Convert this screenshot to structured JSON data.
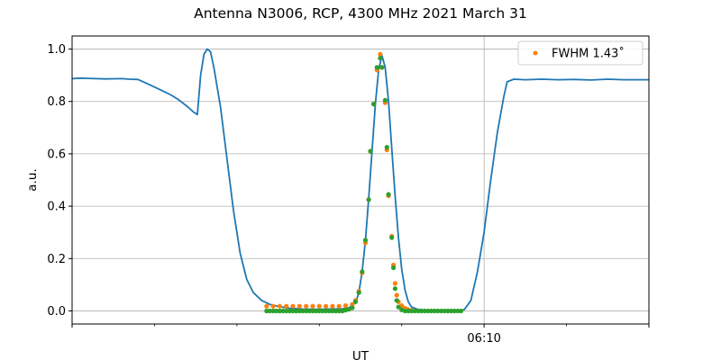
{
  "chart_data": {
    "type": "line",
    "title": "Antenna N3006, RCP, 4300 MHz 2021 March 31",
    "xlabel": "UT",
    "ylabel": "a.u.",
    "xlim": [
      "05:45:00",
      "06:20:00"
    ],
    "ylim": [
      -0.05,
      1.05
    ],
    "yticks": [
      0.0,
      0.2,
      0.4,
      0.6,
      0.8,
      1.0
    ],
    "ytick_labels": [
      "0.0",
      "0.2",
      "0.4",
      "0.6",
      "0.8",
      "1.0"
    ],
    "xtick_major": [
      {
        "time": "06:10:00",
        "label": "06:10"
      }
    ],
    "xtick_minor": [
      "05:50:00",
      "05:55:00",
      "06:00:00",
      "06:05:00",
      "06:15:00"
    ],
    "grid": true,
    "legend": {
      "position": "top-right",
      "entries": [
        {
          "label": "FWHM 1.43$^\\circ$",
          "display": "FWHM 1.43˚",
          "color": "#ff7f0e"
        }
      ]
    },
    "colors": {
      "line": "#1f77b4",
      "fit": "#ff7f0e",
      "sample": "#2ca02c",
      "grid": "#b0b0b0"
    },
    "series": [
      {
        "style": "line",
        "color": "#1f77b4",
        "points": [
          [
            "05:45:00",
            0.887
          ],
          [
            "05:45:30",
            0.889
          ],
          [
            "05:46:00",
            0.888
          ],
          [
            "05:47:00",
            0.886
          ],
          [
            "05:48:00",
            0.887
          ],
          [
            "05:48:30",
            0.885
          ],
          [
            "05:49:00",
            0.884
          ],
          [
            "05:49:30",
            0.87
          ],
          [
            "05:50:00",
            0.855
          ],
          [
            "05:50:30",
            0.84
          ],
          [
            "05:51:00",
            0.825
          ],
          [
            "05:51:30",
            0.805
          ],
          [
            "05:52:00",
            0.78
          ],
          [
            "05:52:24",
            0.758
          ],
          [
            "05:52:36",
            0.75
          ],
          [
            "05:52:48",
            0.9
          ],
          [
            "05:53:00",
            0.98
          ],
          [
            "05:53:12",
            1.0
          ],
          [
            "05:53:24",
            0.99
          ],
          [
            "05:53:36",
            0.93
          ],
          [
            "05:54:00",
            0.78
          ],
          [
            "05:54:24",
            0.58
          ],
          [
            "05:54:48",
            0.38
          ],
          [
            "05:55:12",
            0.22
          ],
          [
            "05:55:36",
            0.12
          ],
          [
            "05:56:00",
            0.07
          ],
          [
            "05:56:30",
            0.04
          ],
          [
            "05:57:00",
            0.025
          ],
          [
            "05:57:36",
            0.016
          ],
          [
            "05:58:12",
            0.01
          ],
          [
            "05:59:00",
            0.007
          ],
          [
            "05:59:48",
            0.006
          ],
          [
            "06:00:36",
            0.007
          ],
          [
            "06:01:24",
            0.008
          ],
          [
            "06:01:48",
            0.012
          ],
          [
            "06:02:12",
            0.03
          ],
          [
            "06:02:24",
            0.07
          ],
          [
            "06:02:36",
            0.15
          ],
          [
            "06:02:48",
            0.27
          ],
          [
            "06:03:00",
            0.43
          ],
          [
            "06:03:12",
            0.61
          ],
          [
            "06:03:24",
            0.79
          ],
          [
            "06:03:36",
            0.92
          ],
          [
            "06:03:48",
            0.975
          ],
          [
            "06:04:00",
            0.93
          ],
          [
            "06:04:12",
            0.8
          ],
          [
            "06:04:24",
            0.62
          ],
          [
            "06:04:36",
            0.44
          ],
          [
            "06:04:48",
            0.28
          ],
          [
            "06:05:00",
            0.16
          ],
          [
            "06:05:12",
            0.08
          ],
          [
            "06:05:24",
            0.035
          ],
          [
            "06:05:36",
            0.015
          ],
          [
            "06:06:00",
            0.005
          ],
          [
            "06:06:48",
            0.002
          ],
          [
            "06:07:36",
            0.001
          ],
          [
            "06:08:24",
            0.0
          ],
          [
            "06:08:48",
            0.005
          ],
          [
            "06:09:12",
            0.04
          ],
          [
            "06:09:36",
            0.15
          ],
          [
            "06:10:00",
            0.3
          ],
          [
            "06:10:24",
            0.5
          ],
          [
            "06:10:48",
            0.68
          ],
          [
            "06:11:12",
            0.82
          ],
          [
            "06:11:24",
            0.875
          ],
          [
            "06:11:48",
            0.885
          ],
          [
            "06:12:30",
            0.883
          ],
          [
            "06:13:30",
            0.885
          ],
          [
            "06:14:30",
            0.883
          ],
          [
            "06:15:30",
            0.884
          ],
          [
            "06:16:30",
            0.882
          ],
          [
            "06:17:30",
            0.885
          ],
          [
            "06:18:30",
            0.883
          ],
          [
            "06:20:00",
            0.883
          ]
        ]
      },
      {
        "style": "dots",
        "color": "#ff7f0e",
        "legend": "FWHM 1.43˚",
        "points": [
          [
            "05:56:48",
            0.018
          ],
          [
            "05:57:12",
            0.018
          ],
          [
            "05:57:36",
            0.018
          ],
          [
            "05:58:00",
            0.018
          ],
          [
            "05:58:24",
            0.018
          ],
          [
            "05:58:48",
            0.018
          ],
          [
            "05:59:12",
            0.018
          ],
          [
            "05:59:36",
            0.018
          ],
          [
            "06:00:00",
            0.018
          ],
          [
            "06:00:24",
            0.018
          ],
          [
            "06:00:48",
            0.018
          ],
          [
            "06:01:12",
            0.018
          ],
          [
            "06:01:36",
            0.02
          ],
          [
            "06:02:00",
            0.025
          ],
          [
            "06:02:12",
            0.04
          ],
          [
            "06:02:24",
            0.075
          ],
          [
            "06:02:36",
            0.145
          ],
          [
            "06:02:48",
            0.26
          ],
          [
            "06:03:00",
            0.425
          ],
          [
            "06:03:06",
            0.61
          ],
          [
            "06:03:18",
            0.79
          ],
          [
            "06:03:30",
            0.92
          ],
          [
            "06:03:42",
            0.98
          ],
          [
            "06:03:48",
            0.93
          ],
          [
            "06:04:00",
            0.795
          ],
          [
            "06:04:06",
            0.615
          ],
          [
            "06:04:12",
            0.44
          ],
          [
            "06:04:24",
            0.285
          ],
          [
            "06:04:30",
            0.175
          ],
          [
            "06:04:36",
            0.105
          ],
          [
            "06:04:42",
            0.06
          ],
          [
            "06:04:48",
            0.035
          ],
          [
            "06:05:00",
            0.02
          ],
          [
            "06:05:12",
            0.01
          ],
          [
            "06:05:24",
            0.005
          ],
          [
            "06:05:36",
            0.002
          ]
        ]
      },
      {
        "style": "dots",
        "color": "#2ca02c",
        "points": [
          [
            "05:56:48",
            0.0
          ],
          [
            "05:57:00",
            0.0
          ],
          [
            "05:57:12",
            0.0
          ],
          [
            "05:57:24",
            0.0
          ],
          [
            "05:57:36",
            0.0
          ],
          [
            "05:57:48",
            0.0
          ],
          [
            "05:58:00",
            0.0
          ],
          [
            "05:58:12",
            0.0
          ],
          [
            "05:58:24",
            0.0
          ],
          [
            "05:58:36",
            0.0
          ],
          [
            "05:58:48",
            0.0
          ],
          [
            "05:59:00",
            0.0
          ],
          [
            "05:59:12",
            0.0
          ],
          [
            "05:59:24",
            0.0
          ],
          [
            "05:59:36",
            0.0
          ],
          [
            "05:59:48",
            0.0
          ],
          [
            "06:00:00",
            0.0
          ],
          [
            "06:00:12",
            0.0
          ],
          [
            "06:00:24",
            0.0
          ],
          [
            "06:00:36",
            0.0
          ],
          [
            "06:00:48",
            0.0
          ],
          [
            "06:01:00",
            0.0
          ],
          [
            "06:01:12",
            0.0
          ],
          [
            "06:01:24",
            0.0
          ],
          [
            "06:01:36",
            0.003
          ],
          [
            "06:01:48",
            0.006
          ],
          [
            "06:02:00",
            0.012
          ],
          [
            "06:02:12",
            0.035
          ],
          [
            "06:02:24",
            0.07
          ],
          [
            "06:02:36",
            0.15
          ],
          [
            "06:02:48",
            0.27
          ],
          [
            "06:03:00",
            0.425
          ],
          [
            "06:03:06",
            0.61
          ],
          [
            "06:03:18",
            0.79
          ],
          [
            "06:03:30",
            0.93
          ],
          [
            "06:03:42",
            0.965
          ],
          [
            "06:03:48",
            0.93
          ],
          [
            "06:04:00",
            0.805
          ],
          [
            "06:04:06",
            0.625
          ],
          [
            "06:04:12",
            0.445
          ],
          [
            "06:04:24",
            0.28
          ],
          [
            "06:04:30",
            0.165
          ],
          [
            "06:04:36",
            0.085
          ],
          [
            "06:04:42",
            0.04
          ],
          [
            "06:04:48",
            0.015
          ],
          [
            "06:05:00",
            0.004
          ],
          [
            "06:05:12",
            0.0
          ],
          [
            "06:05:24",
            0.0
          ],
          [
            "06:05:36",
            0.0
          ],
          [
            "06:05:48",
            0.0
          ],
          [
            "06:06:00",
            0.0
          ],
          [
            "06:06:12",
            0.0
          ],
          [
            "06:06:24",
            0.0
          ],
          [
            "06:06:36",
            0.0
          ],
          [
            "06:06:48",
            0.0
          ],
          [
            "06:07:00",
            0.0
          ],
          [
            "06:07:12",
            0.0
          ],
          [
            "06:07:24",
            0.0
          ],
          [
            "06:07:36",
            0.0
          ],
          [
            "06:07:48",
            0.0
          ],
          [
            "06:08:00",
            0.0
          ],
          [
            "06:08:12",
            0.0
          ],
          [
            "06:08:24",
            0.0
          ],
          [
            "06:08:36",
            0.0
          ]
        ]
      }
    ]
  }
}
